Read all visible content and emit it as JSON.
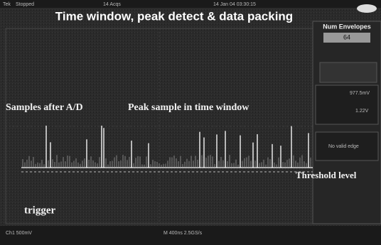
{
  "status_bar": {
    "brand": "Tek",
    "state": "Stopped",
    "acqs": "14 Acqs",
    "timestamp": "14 Jan 04 03:30:15"
  },
  "title": "Time window, peak detect & data packing",
  "annotations": {
    "samples": "Samples after A/D",
    "peak": "Peak sample in time window",
    "threshold": "Threshold level",
    "trigger": "trigger"
  },
  "side_menu": {
    "header": "Num Envelopes",
    "value": "64",
    "readouts": [
      "977.5mV",
      "1.22V"
    ],
    "status": "No valid edge"
  },
  "footer": {
    "channel": "Ch1 500mV",
    "timebase": "M 400ns 2.5GS/s"
  }
}
